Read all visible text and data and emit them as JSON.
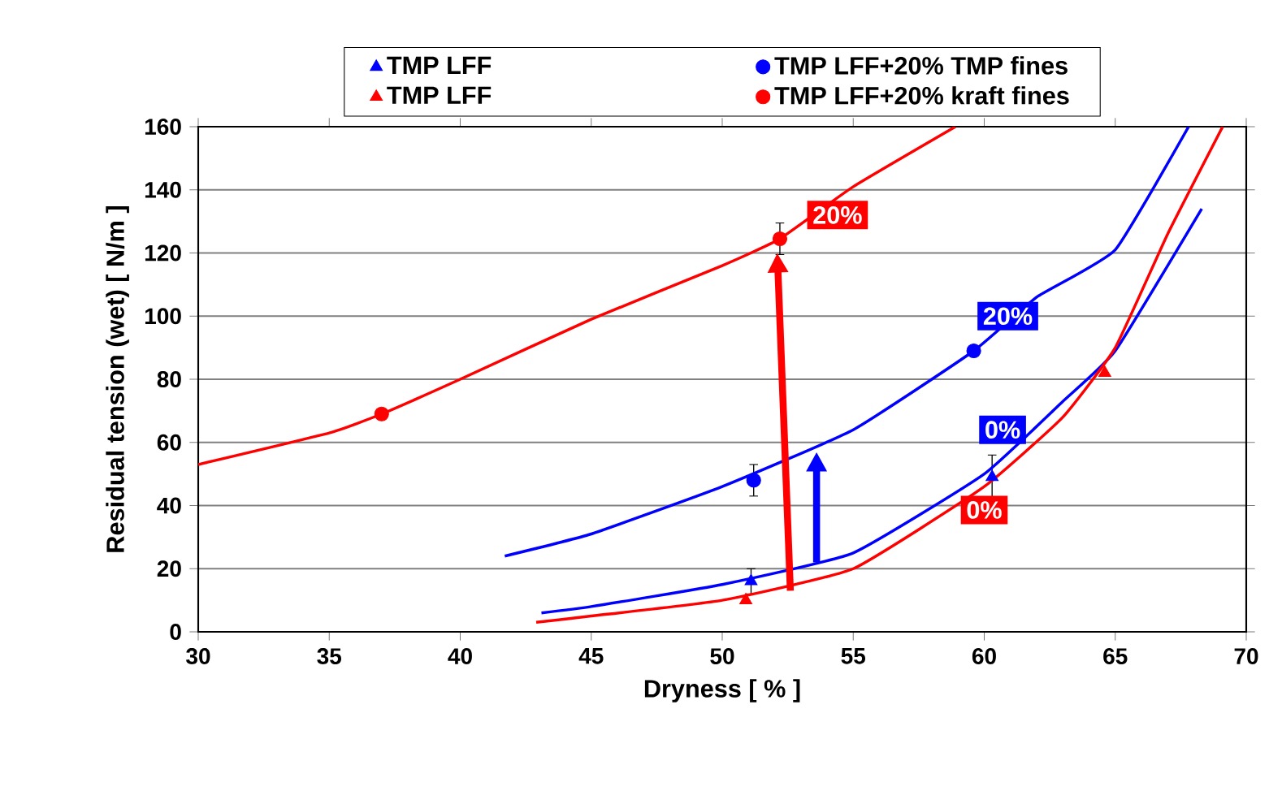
{
  "chart_data": {
    "type": "scatter",
    "xlabel": "Dryness [ % ]",
    "ylabel": "Residual tension (wet) [ N/m ]",
    "xlim": [
      30,
      70
    ],
    "ylim": [
      0,
      160
    ],
    "xticks": [
      30,
      35,
      40,
      45,
      50,
      55,
      60,
      65,
      70
    ],
    "yticks": [
      0,
      20,
      40,
      60,
      80,
      100,
      120,
      140,
      160
    ],
    "grid": "y",
    "legend": "top",
    "series": [
      {
        "name": "TMP LFF",
        "color": "#0000ff",
        "marker": "triangle",
        "x": [
          51.1,
          60.3
        ],
        "values": [
          16,
          49
        ],
        "errors": [
          4,
          7
        ]
      },
      {
        "name": "TMP LFF+20% TMP fines",
        "color": "#0000ff",
        "marker": "circle",
        "x": [
          51.2,
          59.6
        ],
        "values": [
          48,
          89
        ],
        "errors": [
          5,
          null
        ]
      },
      {
        "name": "TMP LFF",
        "color": "#ff0000",
        "marker": "triangle",
        "x": [
          50.9,
          64.6
        ],
        "values": [
          10,
          82
        ]
      },
      {
        "name": "TMP LFF+20% kraft fines",
        "color": "#ff0000",
        "marker": "circle",
        "x": [
          37,
          52.2
        ],
        "values": [
          69,
          124.5
        ],
        "errors": [
          null,
          5
        ]
      },
      {
        "type": "line",
        "color": "#0000ff",
        "x": [
          43.1,
          45,
          50,
          55,
          60,
          63,
          65,
          68.3
        ],
        "values": [
          6,
          8,
          15,
          25,
          50,
          73,
          89,
          134
        ]
      },
      {
        "type": "line",
        "color": "#0000ff",
        "x": [
          41.7,
          45,
          50,
          55,
          59.6,
          62,
          65,
          67.8
        ],
        "values": [
          24,
          31,
          46,
          64,
          89,
          106,
          121,
          160
        ]
      },
      {
        "type": "line",
        "color": "#ff0000",
        "x": [
          42.9,
          45,
          50,
          55,
          60,
          63,
          65,
          67,
          69.1
        ],
        "values": [
          3,
          5,
          10,
          20,
          46,
          68,
          90,
          126,
          160
        ]
      },
      {
        "type": "line",
        "color": "#ff0000",
        "x": [
          30,
          35,
          37,
          40,
          45,
          50,
          52.2,
          55,
          58.9
        ],
        "values": [
          53,
          63,
          69,
          80,
          99,
          116,
          124.5,
          141,
          160
        ]
      }
    ],
    "annotations": [
      {
        "text": "20%",
        "x": 54.4,
        "y": 132
      },
      {
        "text": "20%",
        "x": 60.9,
        "y": 100
      },
      {
        "text": "0%",
        "x": 60.7,
        "y": 64
      },
      {
        "text": "0%",
        "x": 60.0,
        "y": 38.6
      }
    ]
  }
}
